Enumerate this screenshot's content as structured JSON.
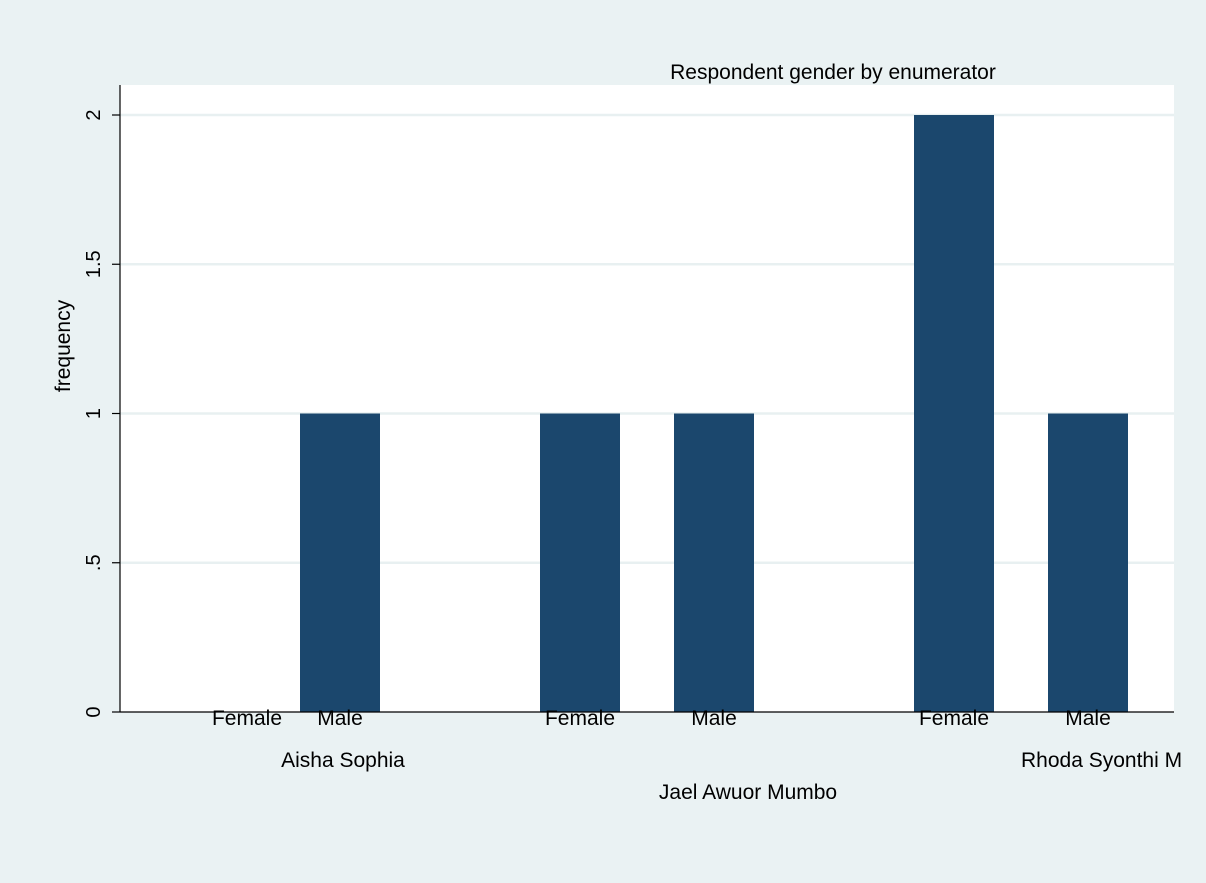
{
  "chart_data": {
    "type": "bar",
    "title": "Respondent gender by enumerator",
    "ylabel": "frequency",
    "ylim": [
      0,
      2
    ],
    "yticks": [
      0,
      0.5,
      1,
      1.5,
      2
    ],
    "yticklabels": [
      "0",
      ".5",
      "1",
      "1.5",
      "2"
    ],
    "grid": true,
    "groups": [
      {
        "name": "Aisha Sophia",
        "bars": [
          {
            "category": "Female",
            "value": 0
          },
          {
            "category": "Male",
            "value": 1
          }
        ]
      },
      {
        "name": "Jael Awuor Mumbo",
        "bars": [
          {
            "category": "Female",
            "value": 1
          },
          {
            "category": "Male",
            "value": 1
          }
        ]
      },
      {
        "name": "Rhoda Syonthi M",
        "bars": [
          {
            "category": "Female",
            "value": 2
          },
          {
            "category": "Male",
            "value": 1
          }
        ]
      }
    ]
  },
  "colors": {
    "background": "#eaf2f3",
    "plot_background": "#ffffff",
    "bar": "#1b476d",
    "grid": "#e8f0f1",
    "axis": "#000000"
  }
}
